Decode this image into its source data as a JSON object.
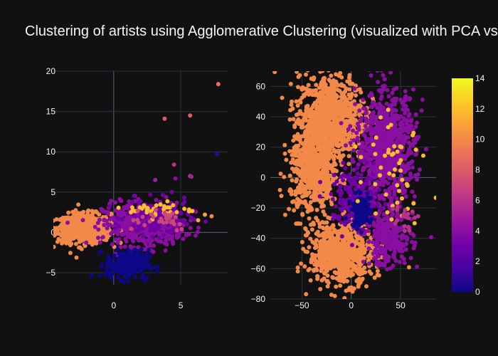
{
  "chart_data": {
    "title": "Clustering of artists using Agglomerative Clustering (visualized with PCA vs t-SNE)",
    "background": "#111111",
    "grid_color": "#283442",
    "zero_line_color": "#506784",
    "colorscale": [
      "#0d0887",
      "#46039f",
      "#7201a8",
      "#9c179e",
      "#bd3786",
      "#d8576b",
      "#ed7953",
      "#fb9f3a",
      "#fdca26",
      "#f0f921"
    ],
    "colorbar": {
      "min": 0,
      "max": 14,
      "ticks": [
        "0",
        "2",
        "4",
        "6",
        "8",
        "10",
        "12",
        "14"
      ]
    },
    "panels": [
      {
        "type": "scatter",
        "method": "PCA",
        "xlim": [
          -4.5,
          8.5
        ],
        "ylim": [
          -6.5,
          20
        ],
        "xticks": [
          0,
          5
        ],
        "xtick_labels": [
          "0",
          "5"
        ],
        "yticks": [
          -5,
          0,
          5,
          10,
          15,
          20
        ],
        "ytick_labels": [
          "−5",
          "0",
          "5",
          "10",
          "15",
          "20"
        ],
        "grid": true,
        "clusters": [
          {
            "cluster": 10,
            "count": 750,
            "cx": -2.2,
            "cy": 0.5,
            "sx": 1.0,
            "sy": 0.9
          },
          {
            "cluster": 4,
            "count": 520,
            "cx": 2.2,
            "cy": 1.0,
            "sx": 1.5,
            "sy": 1.3
          },
          {
            "cluster": 3,
            "count": 160,
            "cx": 3.3,
            "cy": 1.8,
            "sx": 1.2,
            "sy": 1.1
          },
          {
            "cluster": 0,
            "count": 230,
            "cx": 1.0,
            "cy": -4.0,
            "sx": 0.8,
            "sy": 0.9
          },
          {
            "cluster": 12,
            "count": 40,
            "cx": 3.5,
            "cy": 2.8,
            "sx": 1.2,
            "sy": 0.5
          },
          {
            "cluster": 7,
            "count": 30,
            "cx": 3.0,
            "cy": 1.8,
            "sx": 1.5,
            "sy": 0.8
          }
        ],
        "points": [
          {
            "x": 7.8,
            "y": 18.4,
            "c": 9
          },
          {
            "x": 5.7,
            "y": 14.5,
            "c": 8
          },
          {
            "x": 3.8,
            "y": 14.1,
            "c": 8
          },
          {
            "x": 7.7,
            "y": 9.7,
            "c": 1
          },
          {
            "x": 4.5,
            "y": 8.4,
            "c": 6
          },
          {
            "x": 5.7,
            "y": 7.0,
            "c": 6
          },
          {
            "x": 5.8,
            "y": 6.9,
            "c": 5
          },
          {
            "x": 4.6,
            "y": 6.7,
            "c": 4
          },
          {
            "x": 3.1,
            "y": 6.5,
            "c": 5
          },
          {
            "x": 7.3,
            "y": 2.0,
            "c": 10
          },
          {
            "x": 6.8,
            "y": 2.2,
            "c": 11
          },
          {
            "x": 6.3,
            "y": 1.5,
            "c": 11
          }
        ]
      },
      {
        "type": "scatter",
        "method": "t-SNE",
        "xlim": [
          -82,
          86
        ],
        "ylim": [
          -80,
          70
        ],
        "xticks": [
          -50,
          0,
          50
        ],
        "xtick_labels": [
          "−50",
          "0",
          "50"
        ],
        "yticks": [
          -80,
          -60,
          -40,
          -20,
          0,
          20,
          40,
          60
        ],
        "ytick_labels": [
          "−80",
          "−60",
          "−40",
          "−20",
          "0",
          "20",
          "40",
          "60"
        ],
        "grid": true,
        "clusters": [
          {
            "cluster": 10,
            "count": 900,
            "cx": -20,
            "cy": 40,
            "sx": 17,
            "sy": 14
          },
          {
            "cluster": 10,
            "count": 650,
            "cx": -38,
            "cy": 5,
            "sx": 12,
            "sy": 15
          },
          {
            "cluster": 10,
            "count": 700,
            "cx": -10,
            "cy": -50,
            "sx": 16,
            "sy": 10
          },
          {
            "cluster": 4,
            "count": 800,
            "cx": 35,
            "cy": 20,
            "sx": 15,
            "sy": 18
          },
          {
            "cluster": 4,
            "count": 280,
            "cx": 38,
            "cy": -40,
            "sx": 12,
            "sy": 9
          },
          {
            "cluster": 3,
            "count": 180,
            "cx": 5,
            "cy": -15,
            "sx": 12,
            "sy": 10
          },
          {
            "cluster": 0,
            "count": 130,
            "cx": 10,
            "cy": -22,
            "sx": 5,
            "sy": 5
          },
          {
            "cluster": 12,
            "count": 50,
            "cx": 45,
            "cy": 10,
            "sx": 15,
            "sy": 20
          },
          {
            "cluster": 6,
            "count": 20,
            "cx": 52,
            "cy": -25,
            "sx": 6,
            "sy": 5
          }
        ],
        "points": []
      }
    ]
  }
}
